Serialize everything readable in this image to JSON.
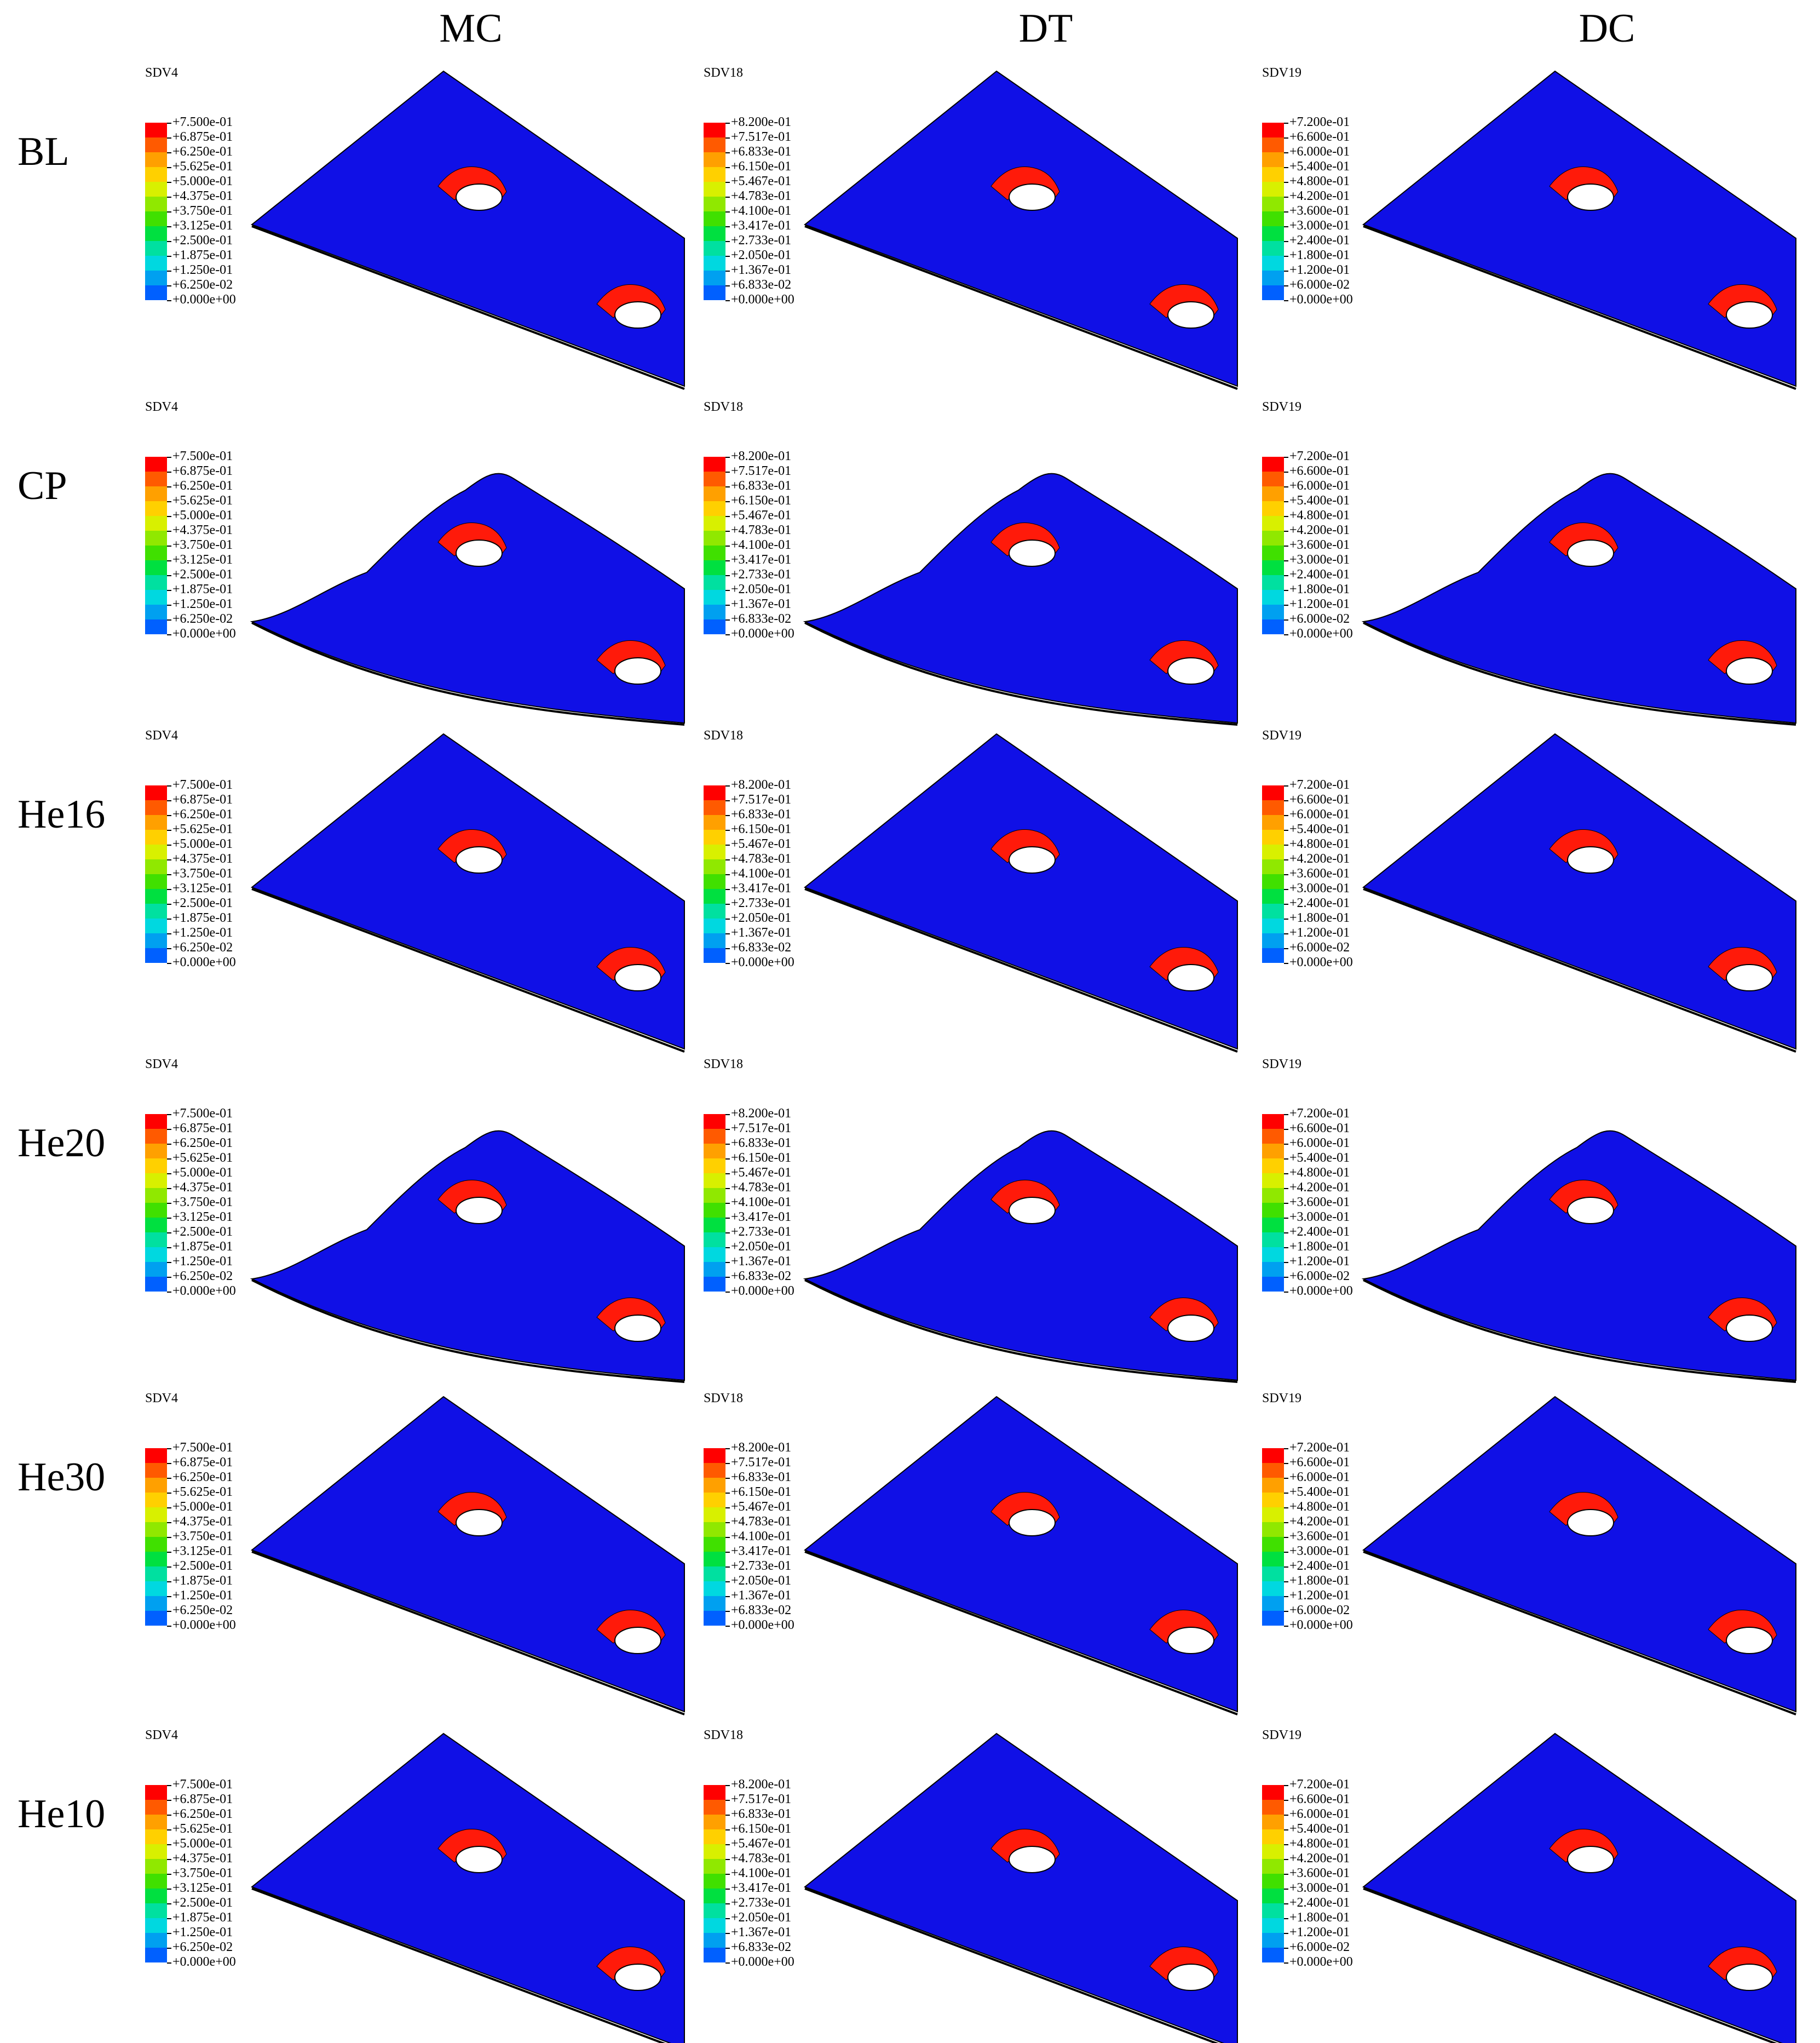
{
  "columns": [
    "MC",
    "DT",
    "DC"
  ],
  "rows": [
    "BL",
    "CP",
    "He16",
    "He20",
    "He30",
    "He10"
  ],
  "legend_titles": [
    "SDV4",
    "SDV18",
    "SDV19"
  ],
  "legend_values": {
    "SDV4": [
      "+7.500e-01",
      "+6.875e-01",
      "+6.250e-01",
      "+5.625e-01",
      "+5.000e-01",
      "+4.375e-01",
      "+3.750e-01",
      "+3.125e-01",
      "+2.500e-01",
      "+1.875e-01",
      "+1.250e-01",
      "+6.250e-02",
      "+0.000e+00"
    ],
    "SDV18": [
      "+8.200e-01",
      "+7.517e-01",
      "+6.833e-01",
      "+6.150e-01",
      "+5.467e-01",
      "+4.783e-01",
      "+4.100e-01",
      "+3.417e-01",
      "+2.733e-01",
      "+2.050e-01",
      "+1.367e-01",
      "+6.833e-02",
      "+0.000e+00"
    ],
    "SDV19": [
      "+7.200e-01",
      "+6.600e-01",
      "+6.000e-01",
      "+5.400e-01",
      "+4.800e-01",
      "+4.200e-01",
      "+3.600e-01",
      "+3.000e-01",
      "+2.400e-01",
      "+1.800e-01",
      "+1.200e-01",
      "+6.000e-02",
      "+0.000e+00"
    ]
  },
  "colors": {
    "plate": "#1010e6",
    "damage": "#ff1a0a",
    "scale": [
      "#ff0000",
      "#ff5a00",
      "#ffa000",
      "#ffd000",
      "#d8f000",
      "#90e800",
      "#40e000",
      "#00e040",
      "#00e0a0",
      "#00d8e0",
      "#00a0f0",
      "#0060ff",
      "#0000ff"
    ]
  }
}
